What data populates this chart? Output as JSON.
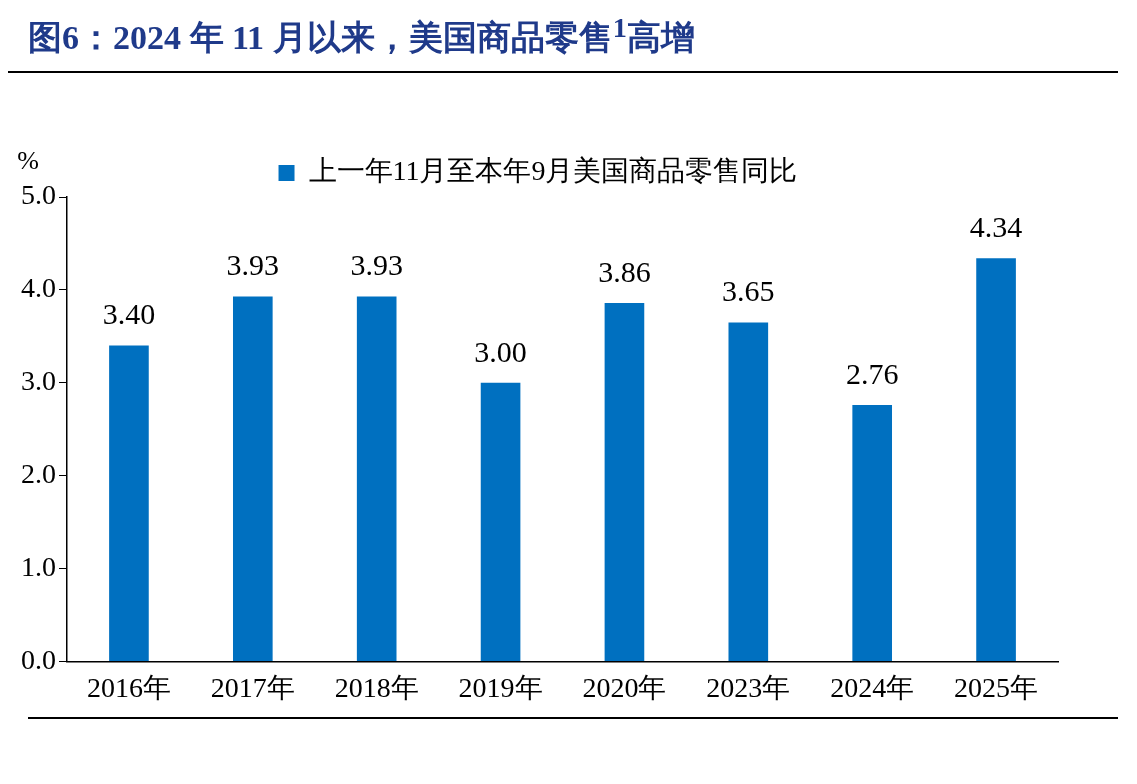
{
  "chart_data": {
    "type": "bar",
    "title": "图6：2024 年 11 月以来，美国商品零售$^{1}$高增",
    "ylabel": "%",
    "categories": [
      "2016年",
      "2017年",
      "2018年",
      "2019年",
      "2020年",
      "2023年",
      "2024年",
      "2025年"
    ],
    "series": [
      {
        "name": "上一年11月至本年9月美国商品零售同比",
        "color": "#0070c0",
        "values": [
          3.4,
          3.93,
          3.93,
          3.0,
          3.86,
          3.65,
          2.76,
          4.34
        ],
        "value_labels": [
          "3.40",
          "3.93",
          "3.93",
          "3.00",
          "3.86",
          "3.65",
          "2.76",
          "4.34"
        ]
      }
    ],
    "ylim": [
      0,
      5
    ],
    "yticks": [
      {
        "value": 0,
        "label": "0.0"
      },
      {
        "value": 1,
        "label": "1.0"
      },
      {
        "value": 2,
        "label": "2.0"
      },
      {
        "value": 3,
        "label": "3.0"
      },
      {
        "value": 4,
        "label": "4.0"
      },
      {
        "value": 5,
        "label": "5.0"
      }
    ],
    "legend": "top",
    "grid": false
  }
}
